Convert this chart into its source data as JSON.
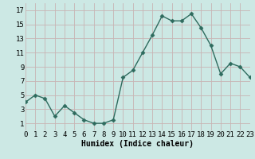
{
  "x": [
    0,
    1,
    2,
    3,
    4,
    5,
    6,
    7,
    8,
    9,
    10,
    11,
    12,
    13,
    14,
    15,
    16,
    17,
    18,
    19,
    20,
    21,
    22,
    23
  ],
  "y": [
    4,
    5,
    4.5,
    2,
    3.5,
    2.5,
    1.5,
    1,
    1,
    1.5,
    7.5,
    8.5,
    11,
    13.5,
    16.2,
    15.5,
    15.5,
    16.5,
    14.5,
    12,
    8,
    9.5,
    9,
    7.5
  ],
  "xlabel": "Humidex (Indice chaleur)",
  "xlim": [
    0,
    23
  ],
  "ylim": [
    0,
    18
  ],
  "yticks": [
    1,
    3,
    5,
    7,
    9,
    11,
    13,
    15,
    17
  ],
  "xticks": [
    0,
    1,
    2,
    3,
    4,
    5,
    6,
    7,
    8,
    9,
    10,
    11,
    12,
    13,
    14,
    15,
    16,
    17,
    18,
    19,
    20,
    21,
    22,
    23
  ],
  "line_color": "#2e6b5e",
  "marker_color": "#2e6b5e",
  "bg_color": "#cce8e4",
  "grid_color_major": "#c8b4b4",
  "grid_color_minor": "#ddd0d0",
  "xlabel_fontsize": 7,
  "tick_fontsize": 6.5,
  "line_width": 1.0,
  "marker_size": 2.5
}
